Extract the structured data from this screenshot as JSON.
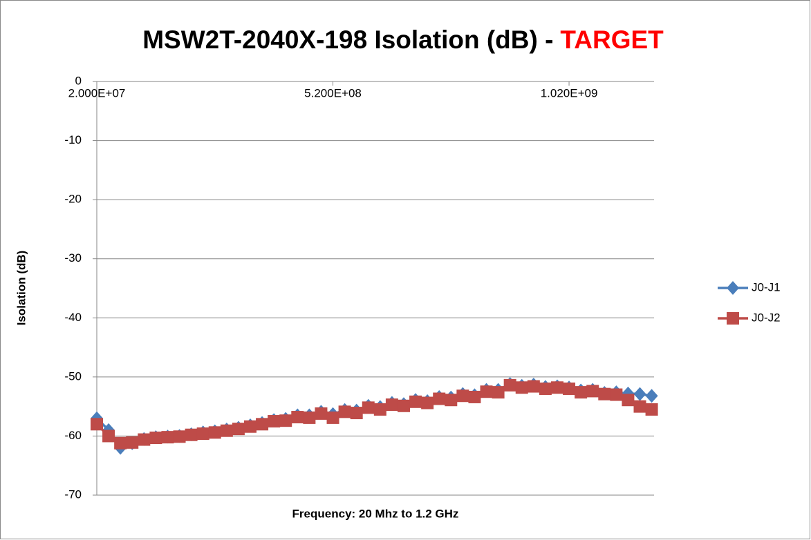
{
  "chart_data": {
    "type": "line",
    "title": "MSW2T-2040X-198 Isolation (dB) -",
    "title_highlight": "TARGET",
    "x_label": "Frequency:  20 Mhz to 1.2 GHz",
    "y_label": "Isolation (dB)",
    "x": [
      20000000,
      45000000,
      70000000,
      95000000,
      120000000,
      145000000,
      170000000,
      195000000,
      220000000,
      245000000,
      270000000,
      295000000,
      320000000,
      345000000,
      370000000,
      395000000,
      420000000,
      445000000,
      470000000,
      495000000,
      520000000,
      545000000,
      570000000,
      595000000,
      620000000,
      645000000,
      670000000,
      695000000,
      720000000,
      745000000,
      770000000,
      795000000,
      820000000,
      845000000,
      870000000,
      895000000,
      920000000,
      945000000,
      970000000,
      995000000,
      1020000000,
      1045000000,
      1070000000,
      1095000000,
      1120000000,
      1145000000,
      1170000000,
      1195000000
    ],
    "series": [
      {
        "name": "J0-J1",
        "color": "#4a7ebb",
        "marker": "diamond",
        "values": [
          -57,
          -59,
          -62,
          -61.2,
          -60.5,
          -60.2,
          -60.1,
          -60,
          -59.7,
          -59.4,
          -59.2,
          -58.9,
          -58.6,
          -58.2,
          -57.8,
          -57.3,
          -57.1,
          -56.5,
          -56.5,
          -55.9,
          -56.3,
          -55.6,
          -55.7,
          -54.9,
          -55.1,
          -54.4,
          -54.6,
          -53.9,
          -54.1,
          -53.4,
          -53.5,
          -52.9,
          -53.1,
          -52.2,
          -52.2,
          -51.2,
          -51.5,
          -51.3,
          -51.7,
          -51.6,
          -51.8,
          -52.3,
          -52.2,
          -52.7,
          -52.6,
          -52.8,
          -52.9,
          -53.2
        ]
      },
      {
        "name": "J0-J2",
        "color": "#be4b48",
        "marker": "square",
        "values": [
          -58,
          -60,
          -61.2,
          -61.1,
          -60.6,
          -60.3,
          -60.2,
          -60.1,
          -59.8,
          -59.6,
          -59.4,
          -59.1,
          -58.8,
          -58.4,
          -58,
          -57.5,
          -57.4,
          -56.8,
          -56.9,
          -56.2,
          -56.9,
          -55.9,
          -56.1,
          -55.2,
          -55.5,
          -54.7,
          -54.9,
          -54.2,
          -54.4,
          -53.7,
          -53.9,
          -53.2,
          -53.4,
          -52.5,
          -52.6,
          -51.4,
          -51.8,
          -51.6,
          -52.0,
          -51.8,
          -52.0,
          -52.6,
          -52.4,
          -52.9,
          -53.0,
          -53.9,
          -55.0,
          -55.5
        ]
      }
    ],
    "xlim": [
      20000000,
      1200000000
    ],
    "xticks": [
      {
        "value": 20000000,
        "label": "2.000E+07"
      },
      {
        "value": 520000000,
        "label": "5.200E+08"
      },
      {
        "value": 1020000000,
        "label": "1.020E+09"
      }
    ],
    "ylim": [
      -70,
      0
    ],
    "yticks": [
      -70,
      -60,
      -50,
      -40,
      -30,
      -20,
      -10,
      0
    ],
    "grid": true,
    "legend": "right"
  }
}
